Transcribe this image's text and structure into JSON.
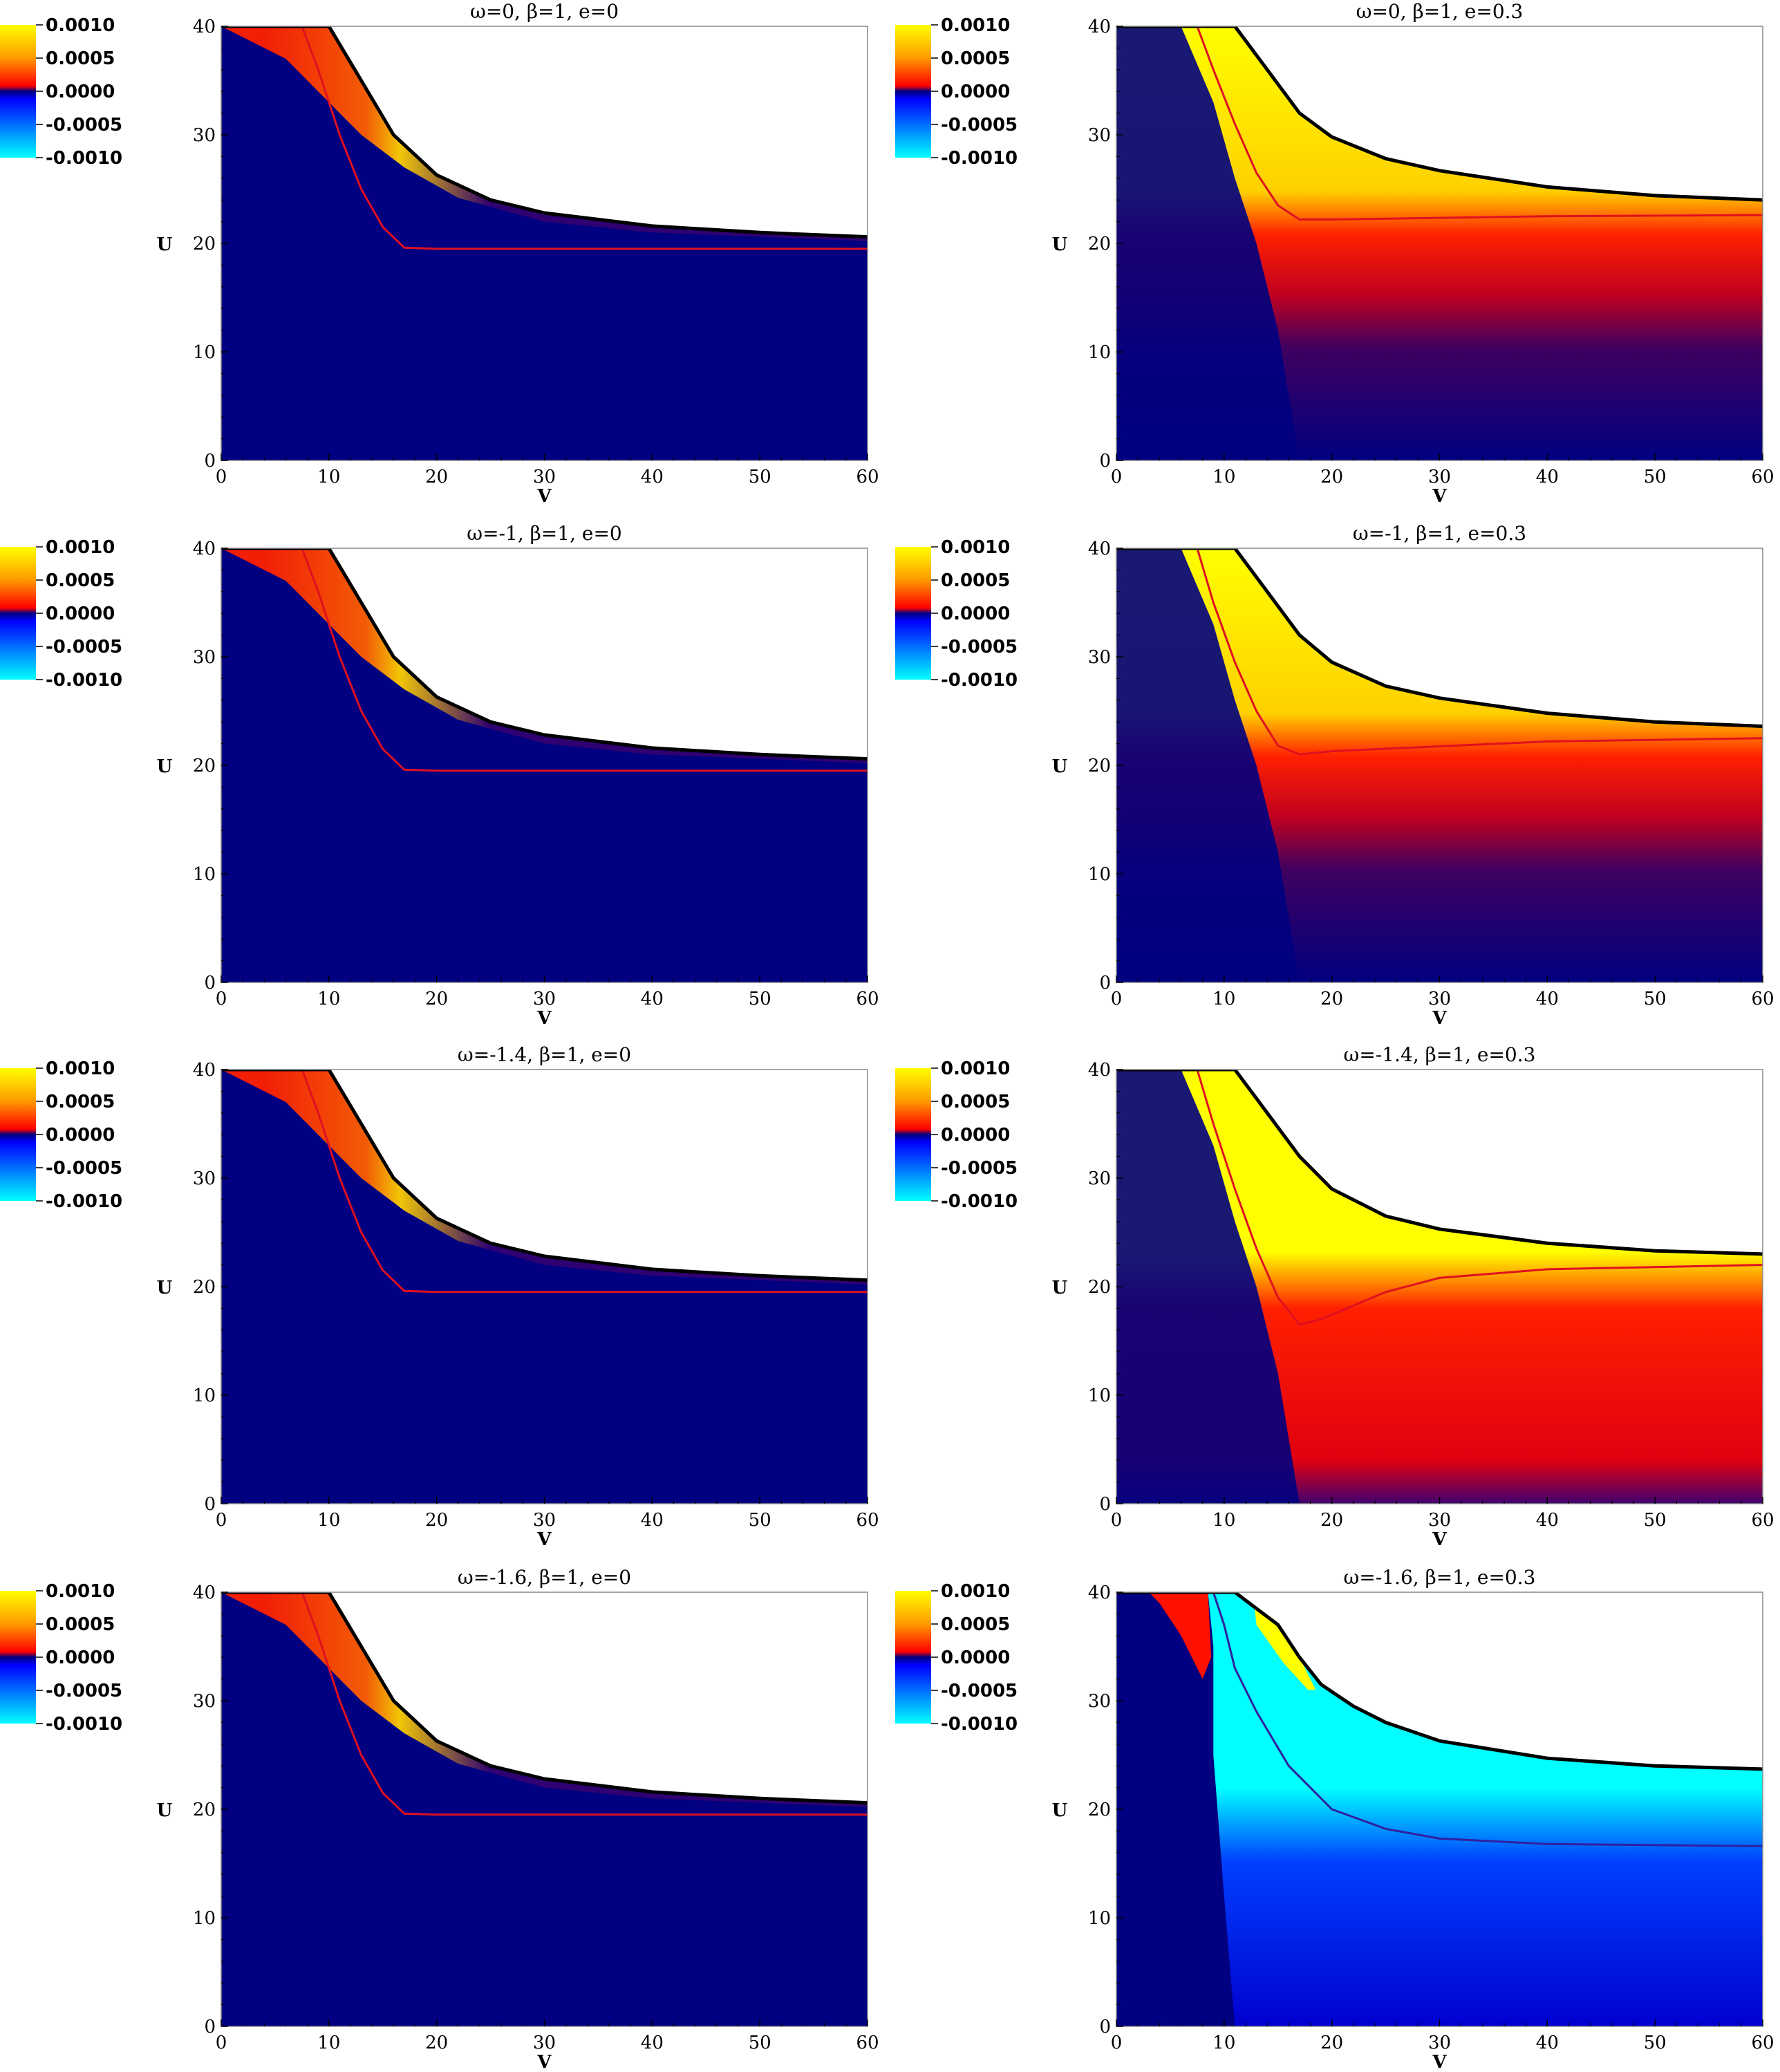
{
  "figure": {
    "x_axis_label": "V",
    "y_axis_label": "U",
    "x_ticks": [
      "0",
      "10",
      "20",
      "30",
      "40",
      "50",
      "60"
    ],
    "y_ticks": [
      "0",
      "10",
      "20",
      "30",
      "40"
    ],
    "colorbar_ticks": [
      "0.0010",
      "0.0005",
      "0.0000",
      "-0.0005",
      "-0.0010"
    ],
    "colorbar_colors": [
      "#ffff00",
      "#ff9900",
      "#ff0000",
      "#000080",
      "#0040ff",
      "#00ffff"
    ]
  },
  "chart_data": [
    {
      "type": "heatmap",
      "title": "ω=0,   β=1,   e=0",
      "params": {
        "omega": 0,
        "beta": 1,
        "e": 0
      },
      "xlim": [
        0,
        60
      ],
      "ylim": [
        0,
        40
      ],
      "xlabel": "V",
      "ylabel": "U",
      "x_ticks": [
        0,
        10,
        20,
        30,
        40,
        50,
        60
      ],
      "y_ticks": [
        0,
        10,
        20,
        30,
        40
      ],
      "colorbar": {
        "range": [
          -0.001,
          0.001
        ],
        "ticks": [
          0.001,
          0.0005,
          0,
          -0.0005,
          -0.001
        ]
      },
      "boundary_curve": [
        [
          0,
          40
        ],
        [
          10,
          40
        ],
        [
          13,
          35
        ],
        [
          16,
          30
        ],
        [
          20,
          26.3
        ],
        [
          25,
          24
        ],
        [
          30,
          22.8
        ],
        [
          40,
          21.6
        ],
        [
          50,
          21
        ],
        [
          60,
          20.6
        ]
      ],
      "red_curve": [
        [
          7.5,
          40
        ],
        [
          9,
          36
        ],
        [
          11,
          30
        ],
        [
          13,
          25
        ],
        [
          15,
          21.5
        ],
        [
          17,
          19.6
        ],
        [
          20,
          19.5
        ],
        [
          60,
          19.5
        ]
      ]
    },
    {
      "type": "heatmap",
      "title": "ω=0,   β=1,   e=0.3",
      "params": {
        "omega": 0,
        "beta": 1,
        "e": 0.3
      },
      "xlim": [
        0,
        60
      ],
      "ylim": [
        0,
        40
      ],
      "xlabel": "V",
      "ylabel": "U",
      "x_ticks": [
        0,
        10,
        20,
        30,
        40,
        50,
        60
      ],
      "y_ticks": [
        0,
        10,
        20,
        30,
        40
      ],
      "colorbar": {
        "range": [
          -0.001,
          0.001
        ],
        "ticks": [
          0.001,
          0.0005,
          0,
          -0.0005,
          -0.001
        ]
      },
      "boundary_curve": [
        [
          0,
          40
        ],
        [
          11,
          40
        ],
        [
          14,
          36
        ],
        [
          17,
          32
        ],
        [
          20,
          29.8
        ],
        [
          25,
          27.8
        ],
        [
          30,
          26.7
        ],
        [
          40,
          25.2
        ],
        [
          50,
          24.4
        ],
        [
          60,
          24
        ]
      ],
      "red_curve": [
        [
          7.5,
          40
        ],
        [
          9,
          36
        ],
        [
          11,
          31
        ],
        [
          13,
          26.5
        ],
        [
          15,
          23.5
        ],
        [
          17,
          22.2
        ],
        [
          20,
          22.2
        ],
        [
          40,
          22.5
        ],
        [
          60,
          22.6
        ]
      ]
    },
    {
      "type": "heatmap",
      "title": "ω=-1,   β=1,   e=0",
      "params": {
        "omega": -1,
        "beta": 1,
        "e": 0
      },
      "xlim": [
        0,
        60
      ],
      "ylim": [
        0,
        40
      ],
      "xlabel": "V",
      "ylabel": "U",
      "x_ticks": [
        0,
        10,
        20,
        30,
        40,
        50,
        60
      ],
      "y_ticks": [
        0,
        10,
        20,
        30,
        40
      ],
      "colorbar": {
        "range": [
          -0.001,
          0.001
        ],
        "ticks": [
          0.001,
          0.0005,
          0,
          -0.0005,
          -0.001
        ]
      },
      "boundary_curve": [
        [
          0,
          40
        ],
        [
          10,
          40
        ],
        [
          13,
          35
        ],
        [
          16,
          30
        ],
        [
          20,
          26.3
        ],
        [
          25,
          24
        ],
        [
          30,
          22.8
        ],
        [
          40,
          21.6
        ],
        [
          50,
          21
        ],
        [
          60,
          20.6
        ]
      ],
      "red_curve": [
        [
          7.5,
          40
        ],
        [
          9,
          36
        ],
        [
          11,
          30
        ],
        [
          13,
          25
        ],
        [
          15,
          21.5
        ],
        [
          17,
          19.6
        ],
        [
          20,
          19.5
        ],
        [
          60,
          19.5
        ]
      ]
    },
    {
      "type": "heatmap",
      "title": "ω=-1,   β=1,   e=0.3",
      "params": {
        "omega": -1,
        "beta": 1,
        "e": 0.3
      },
      "xlim": [
        0,
        60
      ],
      "ylim": [
        0,
        40
      ],
      "xlabel": "V",
      "ylabel": "U",
      "x_ticks": [
        0,
        10,
        20,
        30,
        40,
        50,
        60
      ],
      "y_ticks": [
        0,
        10,
        20,
        30,
        40
      ],
      "colorbar": {
        "range": [
          -0.001,
          0.001
        ],
        "ticks": [
          0.001,
          0.0005,
          0,
          -0.0005,
          -0.001
        ]
      },
      "boundary_curve": [
        [
          0,
          40
        ],
        [
          11,
          40
        ],
        [
          14,
          36
        ],
        [
          17,
          32
        ],
        [
          20,
          29.5
        ],
        [
          25,
          27.3
        ],
        [
          30,
          26.2
        ],
        [
          40,
          24.8
        ],
        [
          50,
          24
        ],
        [
          60,
          23.6
        ]
      ],
      "red_curve": [
        [
          7.5,
          40
        ],
        [
          9,
          35
        ],
        [
          11,
          29.5
        ],
        [
          13,
          25
        ],
        [
          15,
          21.8
        ],
        [
          17,
          21
        ],
        [
          20,
          21.3
        ],
        [
          40,
          22.2
        ],
        [
          60,
          22.5
        ]
      ]
    },
    {
      "type": "heatmap",
      "title": "ω=-1.4,   β=1,   e=0",
      "params": {
        "omega": -1.4,
        "beta": 1,
        "e": 0
      },
      "xlim": [
        0,
        60
      ],
      "ylim": [
        0,
        40
      ],
      "xlabel": "V",
      "ylabel": "U",
      "x_ticks": [
        0,
        10,
        20,
        30,
        40,
        50,
        60
      ],
      "y_ticks": [
        0,
        10,
        20,
        30,
        40
      ],
      "colorbar": {
        "range": [
          -0.001,
          0.001
        ],
        "ticks": [
          0.001,
          0.0005,
          0,
          -0.0005,
          -0.001
        ]
      },
      "boundary_curve": [
        [
          0,
          40
        ],
        [
          10,
          40
        ],
        [
          13,
          35
        ],
        [
          16,
          30
        ],
        [
          20,
          26.3
        ],
        [
          25,
          24
        ],
        [
          30,
          22.8
        ],
        [
          40,
          21.6
        ],
        [
          50,
          21
        ],
        [
          60,
          20.6
        ]
      ],
      "red_curve": [
        [
          7.5,
          40
        ],
        [
          9,
          36
        ],
        [
          11,
          30
        ],
        [
          13,
          25
        ],
        [
          15,
          21.5
        ],
        [
          17,
          19.6
        ],
        [
          20,
          19.5
        ],
        [
          60,
          19.5
        ]
      ]
    },
    {
      "type": "heatmap",
      "title": "ω=-1.4,   β=1,   e=0.3",
      "params": {
        "omega": -1.4,
        "beta": 1,
        "e": 0.3
      },
      "xlim": [
        0,
        60
      ],
      "ylim": [
        0,
        40
      ],
      "xlabel": "V",
      "ylabel": "U",
      "x_ticks": [
        0,
        10,
        20,
        30,
        40,
        50,
        60
      ],
      "y_ticks": [
        0,
        10,
        20,
        30,
        40
      ],
      "colorbar": {
        "range": [
          -0.001,
          0.001
        ],
        "ticks": [
          0.001,
          0.0005,
          0,
          -0.0005,
          -0.001
        ]
      },
      "boundary_curve": [
        [
          0,
          40
        ],
        [
          11,
          40
        ],
        [
          14,
          36
        ],
        [
          17,
          32
        ],
        [
          20,
          29
        ],
        [
          25,
          26.5
        ],
        [
          30,
          25.3
        ],
        [
          40,
          24
        ],
        [
          50,
          23.3
        ],
        [
          60,
          23
        ]
      ],
      "red_curve": [
        [
          7.5,
          40
        ],
        [
          9,
          35
        ],
        [
          11,
          29
        ],
        [
          13,
          23.5
        ],
        [
          15,
          19
        ],
        [
          17,
          16.5
        ],
        [
          19,
          17
        ],
        [
          25,
          19.5
        ],
        [
          30,
          20.8
        ],
        [
          40,
          21.6
        ],
        [
          60,
          22
        ]
      ]
    },
    {
      "type": "heatmap",
      "title": "ω=-1.6,   β=1,   e=0",
      "params": {
        "omega": -1.6,
        "beta": 1,
        "e": 0
      },
      "xlim": [
        0,
        60
      ],
      "ylim": [
        0,
        40
      ],
      "xlabel": "V",
      "ylabel": "U",
      "x_ticks": [
        0,
        10,
        20,
        30,
        40,
        50,
        60
      ],
      "y_ticks": [
        0,
        10,
        20,
        30,
        40
      ],
      "colorbar": {
        "range": [
          -0.001,
          0.001
        ],
        "ticks": [
          0.001,
          0.0005,
          0,
          -0.0005,
          -0.001
        ]
      },
      "boundary_curve": [
        [
          0,
          40
        ],
        [
          10,
          40
        ],
        [
          13,
          35
        ],
        [
          16,
          30
        ],
        [
          20,
          26.3
        ],
        [
          25,
          24
        ],
        [
          30,
          22.8
        ],
        [
          40,
          21.6
        ],
        [
          50,
          21
        ],
        [
          60,
          20.6
        ]
      ],
      "red_curve": [
        [
          7.5,
          40
        ],
        [
          9,
          36
        ],
        [
          11,
          30
        ],
        [
          13,
          25
        ],
        [
          15,
          21.5
        ],
        [
          17,
          19.6
        ],
        [
          20,
          19.5
        ],
        [
          60,
          19.5
        ]
      ]
    },
    {
      "type": "heatmap",
      "title": "ω=-1.6,   β=1,   e=0.3",
      "params": {
        "omega": -1.6,
        "beta": 1,
        "e": 0.3
      },
      "xlim": [
        0,
        60
      ],
      "ylim": [
        0,
        40
      ],
      "xlabel": "V",
      "ylabel": "U",
      "x_ticks": [
        0,
        10,
        20,
        30,
        40,
        50,
        60
      ],
      "y_ticks": [
        0,
        10,
        20,
        30,
        40
      ],
      "colorbar": {
        "range": [
          -0.001,
          0.001
        ],
        "ticks": [
          0.001,
          0.0005,
          0,
          -0.0005,
          -0.001
        ]
      },
      "boundary_curve": [
        [
          0,
          40
        ],
        [
          11,
          40
        ],
        [
          13,
          38.5
        ],
        [
          15,
          37
        ],
        [
          17,
          34
        ],
        [
          19,
          31.5
        ],
        [
          22,
          29.5
        ],
        [
          25,
          28
        ],
        [
          30,
          26.3
        ],
        [
          40,
          24.7
        ],
        [
          50,
          24
        ],
        [
          60,
          23.7
        ]
      ],
      "red_curve": [
        [
          9,
          40
        ],
        [
          10,
          37
        ],
        [
          11,
          33
        ],
        [
          13,
          29
        ],
        [
          16,
          24
        ],
        [
          20,
          20
        ],
        [
          25,
          18.2
        ],
        [
          30,
          17.3
        ],
        [
          40,
          16.8
        ],
        [
          60,
          16.6
        ]
      ]
    }
  ]
}
